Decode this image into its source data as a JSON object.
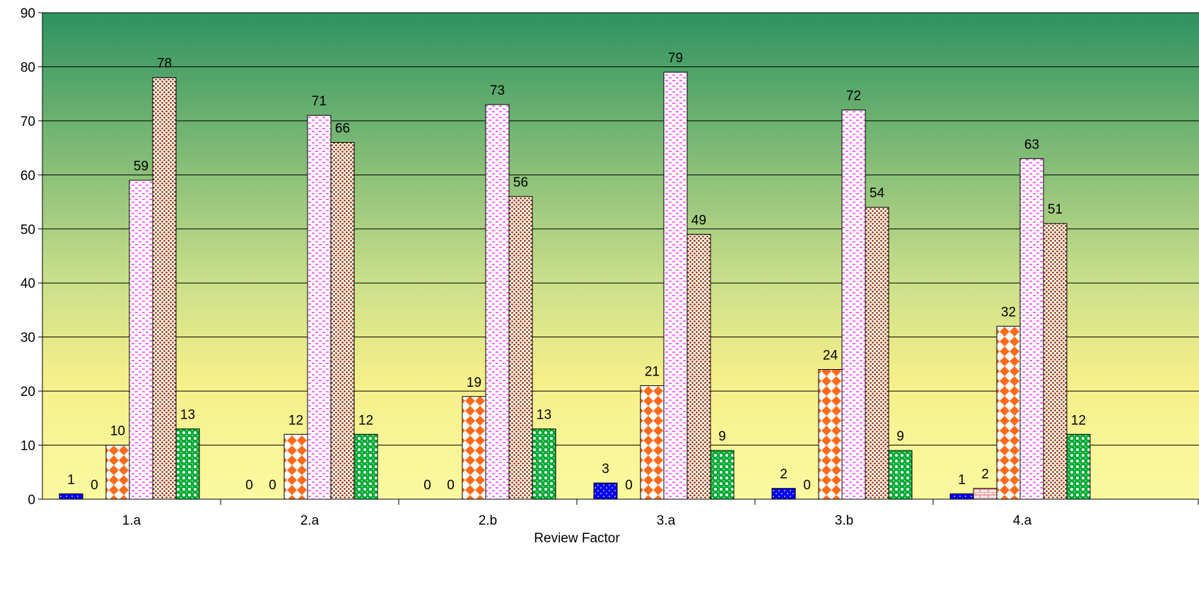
{
  "chart_data": {
    "type": "bar",
    "title": "",
    "xlabel": "Review Factor",
    "ylabel": "",
    "ylim": [
      0,
      90
    ],
    "ytick_step": 10,
    "grid": true,
    "legend": "none",
    "categories": [
      "1.a",
      "2.a",
      "2.b",
      "3.a",
      "3.b",
      "4.a"
    ],
    "series": [
      {
        "values": [
          1,
          0,
          0,
          3,
          2,
          1
        ],
        "color": "#0000ee",
        "pattern": "dots-blue"
      },
      {
        "values": [
          0,
          0,
          0,
          0,
          0,
          2
        ],
        "color": "#f4c4c4",
        "pattern": "brick"
      },
      {
        "values": [
          10,
          12,
          19,
          21,
          24,
          32
        ],
        "color": "#ff6a1a",
        "pattern": "diamond"
      },
      {
        "values": [
          59,
          71,
          73,
          79,
          72,
          63
        ],
        "color": "#ff33ff",
        "pattern": "dash"
      },
      {
        "values": [
          78,
          66,
          56,
          49,
          54,
          51
        ],
        "color": "#993300",
        "pattern": "dots-brown"
      },
      {
        "values": [
          13,
          12,
          13,
          9,
          9,
          12
        ],
        "color": "#00aa33",
        "pattern": "circles-green"
      }
    ],
    "background_gradient": [
      "#2e9260",
      "#f5ef8a",
      "#fbf9a0"
    ]
  }
}
